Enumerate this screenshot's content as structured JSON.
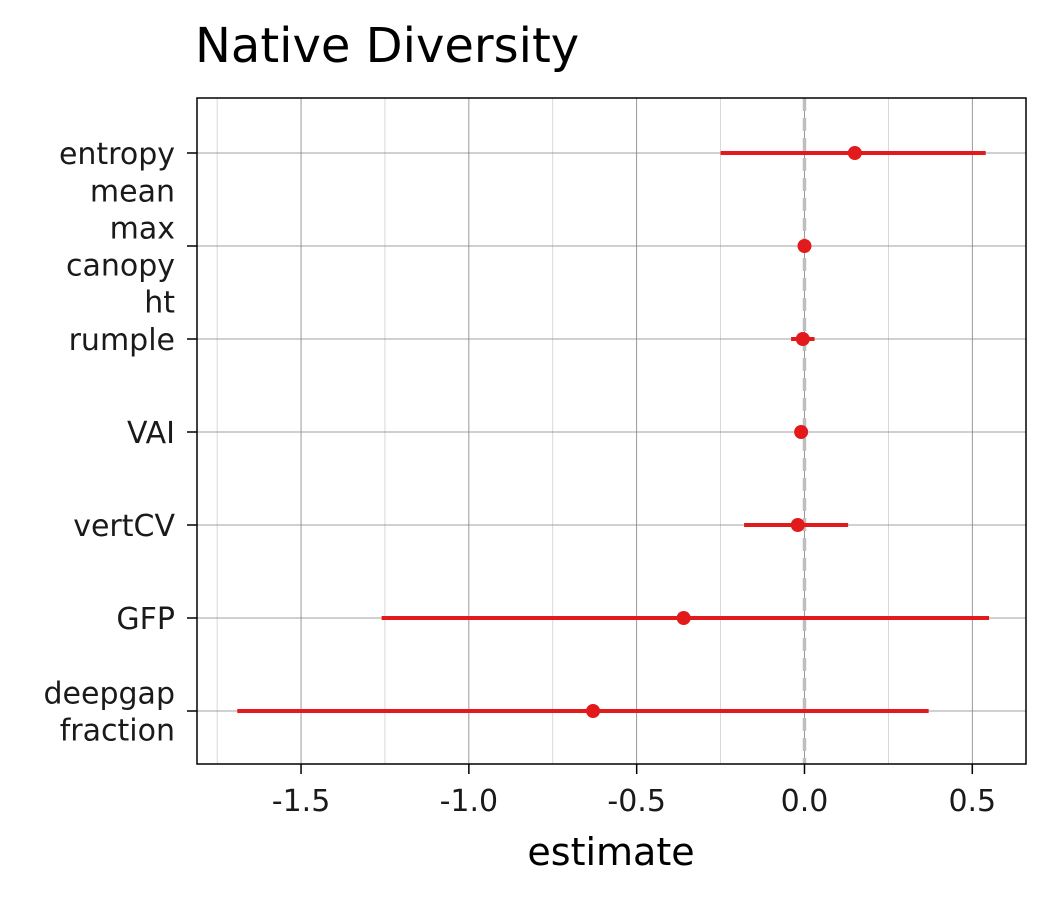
{
  "chart_data": {
    "type": "errorbar",
    "title": "Native Diversity",
    "xlabel": "estimate",
    "ylabel": "",
    "xlim": [
      -1.81,
      0.66
    ],
    "xticks": [
      -1.5,
      -1.0,
      -0.5,
      0.0,
      0.5
    ],
    "xtick_labels": [
      "-1.5",
      "-1.0",
      "-0.5",
      "0.0",
      "0.5"
    ],
    "reference_line_x": 0,
    "grid": true,
    "colors": {
      "point": "#e31a1c",
      "reference_line": "#bebebe",
      "grid_major": "#808080",
      "grid_minor": "#c8c8c8"
    },
    "rows": [
      {
        "label_lines": [
          "entropy"
        ],
        "estimate": 0.15,
        "low": -0.25,
        "high": 0.54
      },
      {
        "label_lines": [
          "mean",
          "max",
          "canopy",
          "ht"
        ],
        "estimate": 0.0,
        "low": -0.005,
        "high": 0.005
      },
      {
        "label_lines": [
          "rumple"
        ],
        "estimate": -0.005,
        "low": -0.04,
        "high": 0.03
      },
      {
        "label_lines": [
          "VAI"
        ],
        "estimate": -0.01,
        "low": -0.02,
        "high": 0.0
      },
      {
        "label_lines": [
          "vertCV"
        ],
        "estimate": -0.02,
        "low": -0.18,
        "high": 0.13
      },
      {
        "label_lines": [
          "GFP"
        ],
        "estimate": -0.36,
        "low": -1.26,
        "high": 0.55
      },
      {
        "label_lines": [
          "deepgap",
          "fraction"
        ],
        "estimate": -0.63,
        "low": -1.69,
        "high": 0.37
      }
    ]
  }
}
